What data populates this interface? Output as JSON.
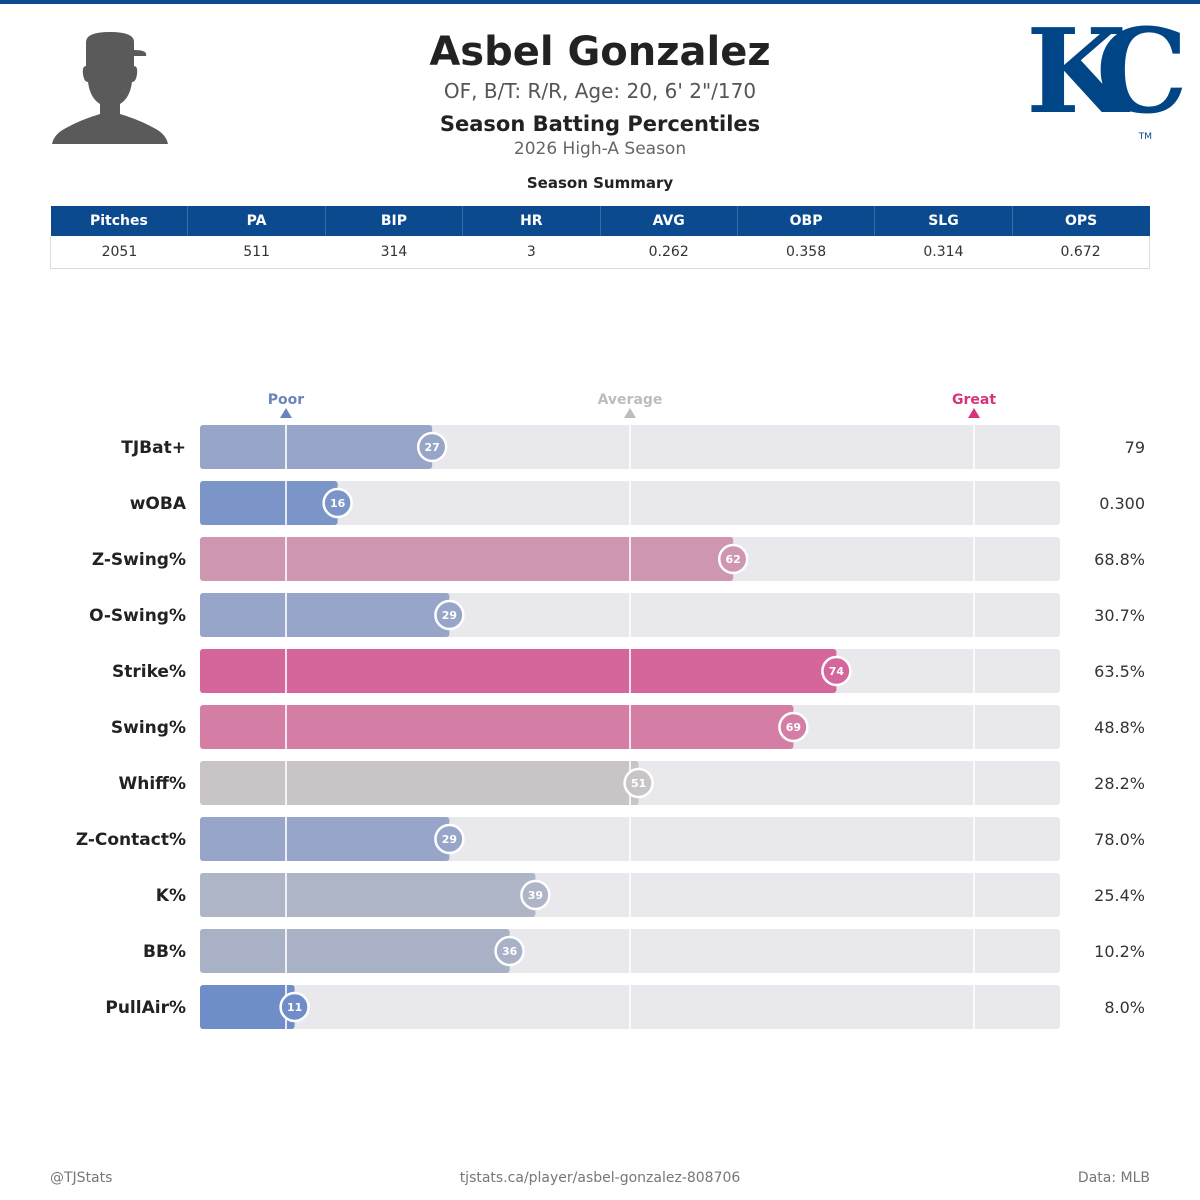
{
  "header": {
    "name": "Asbel Gonzalez",
    "bio": "OF, B/T: R/R, Age: 20, 6' 2\"/170",
    "subtitle": "Season Batting Percentiles",
    "season": "2026 High-A Season"
  },
  "logo": {
    "text": "KC",
    "tm": "TM",
    "color": "#004687"
  },
  "summary": {
    "title": "Season Summary",
    "columns": [
      "Pitches",
      "PA",
      "BIP",
      "HR",
      "AVG",
      "OBP",
      "SLG",
      "OPS"
    ],
    "values": [
      "2051",
      "511",
      "314",
      "3",
      "0.262",
      "0.358",
      "0.314",
      "0.672"
    ]
  },
  "chart_data": {
    "type": "bar",
    "xlim": [
      0,
      100
    ],
    "markers": [
      {
        "label": "Poor",
        "value": 10,
        "color": "#6b84be"
      },
      {
        "label": "Average",
        "value": 50,
        "color": "#bdbdbd"
      },
      {
        "label": "Great",
        "value": 90,
        "color": "#d6337a"
      }
    ],
    "categories": [
      "TJBat+",
      "wOBA",
      "Z-Swing%",
      "O-Swing%",
      "Strike%",
      "Swing%",
      "Whiff%",
      "Z-Contact%",
      "K%",
      "BB%",
      "PullAir%"
    ],
    "percentiles": [
      27,
      16,
      62,
      29,
      74,
      69,
      51,
      29,
      39,
      36,
      11
    ],
    "stat_values": [
      "79",
      "0.300",
      "68.8%",
      "30.7%",
      "63.5%",
      "48.8%",
      "28.2%",
      "78.0%",
      "25.4%",
      "10.2%",
      "8.0%"
    ],
    "bar_colors": [
      "#97a6c8",
      "#7c95c8",
      "#cf96b2",
      "#97a6c8",
      "#d4669b",
      "#d57ea5",
      "#c9c4c6",
      "#97a6c8",
      "#aeb5c6",
      "#a9b1c7",
      "#6f8ec9"
    ],
    "track_color": "#e8e8ed"
  },
  "footer": {
    "handle": "@TJStats",
    "url": "tjstats.ca/player/asbel-gonzalez-808706",
    "source": "Data: MLB"
  }
}
